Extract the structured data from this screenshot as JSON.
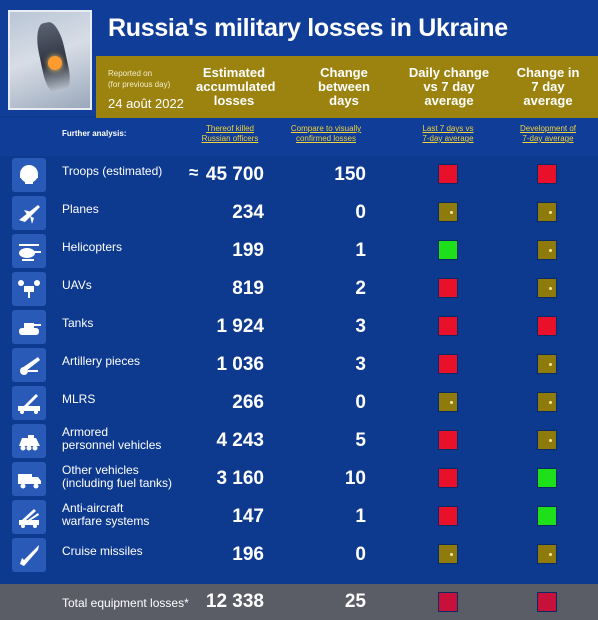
{
  "header": {
    "title": "Russia's military losses in Ukraine",
    "reported_line1": "Reported on",
    "reported_line2": "(for previous day)",
    "reported_date": "24 août 2022"
  },
  "columns": {
    "accumulated": [
      "Estimated",
      "accumulated",
      "losses"
    ],
    "change": [
      "Change",
      "between",
      "days"
    ],
    "daily": [
      "Daily change",
      "vs 7 day",
      "average"
    ],
    "seven": [
      "Change in",
      "7 day",
      "average"
    ]
  },
  "subheader": {
    "further": "Further analysis:",
    "officers": [
      "Thereof killed",
      "Russian officers"
    ],
    "confirmed": [
      "Compare to visually",
      "confirmed losses"
    ],
    "last7": [
      "Last 7 days vs",
      "7-day average"
    ],
    "development": [
      "Development of",
      "7-day average"
    ]
  },
  "rows": [
    {
      "label": [
        "Troops (estimated)"
      ],
      "approx": "≈",
      "value": "45 700",
      "change": "150",
      "daily": "red",
      "seven": "red"
    },
    {
      "label": [
        "Planes"
      ],
      "value": "234",
      "change": "0",
      "daily": "gold",
      "seven": "gold"
    },
    {
      "label": [
        "Helicopters"
      ],
      "value": "199",
      "change": "1",
      "daily": "green",
      "seven": "gold"
    },
    {
      "label": [
        "UAVs"
      ],
      "value": "819",
      "change": "2",
      "daily": "red",
      "seven": "gold"
    },
    {
      "label": [
        "Tanks"
      ],
      "value": "1 924",
      "change": "3",
      "daily": "red",
      "seven": "red"
    },
    {
      "label": [
        "Artillery pieces"
      ],
      "value": "1 036",
      "change": "3",
      "daily": "red",
      "seven": "gold"
    },
    {
      "label": [
        "MLRS"
      ],
      "value": "266",
      "change": "0",
      "daily": "gold",
      "seven": "gold"
    },
    {
      "label": [
        "Armored",
        "personnel vehicles"
      ],
      "value": "4 243",
      "change": "5",
      "daily": "red",
      "seven": "gold"
    },
    {
      "label": [
        "Other vehicles",
        "(including fuel tanks)"
      ],
      "value": "3 160",
      "change": "10",
      "daily": "red",
      "seven": "green"
    },
    {
      "label": [
        "Anti-aircraft",
        "warfare systems"
      ],
      "value": "147",
      "change": "1",
      "daily": "red",
      "seven": "green"
    },
    {
      "label": [
        "Cruise missiles"
      ],
      "value": "196",
      "change": "0",
      "daily": "gold",
      "seven": "gold"
    }
  ],
  "total": {
    "label": "Total equipment losses*",
    "value": "12 338",
    "change": "25",
    "daily": "crimson",
    "seven": "crimson"
  },
  "colors": {
    "red": "#e8102a",
    "gold": "#8f7a0c",
    "green": "#1ee01a",
    "crimson": "#c7103a",
    "background": "#0d3a8e",
    "header_band": "#9c830f"
  }
}
